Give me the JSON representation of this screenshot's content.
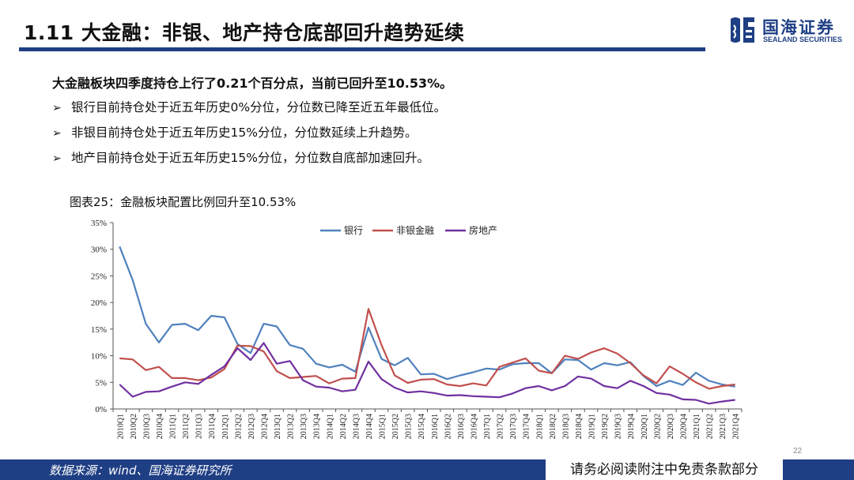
{
  "slide": {
    "title": "1.11 大金融：非银、地产持仓底部回升趋势延续",
    "page_number": "22"
  },
  "brand": {
    "name_cn": "国海证券",
    "name_en": "SEALAND SECURITIES",
    "logo_icon": "sealand-logo-icon",
    "primary_color": "#1f3f84"
  },
  "content": {
    "headline": "大金融板块四季度持仓上行了0.21个百分点，当前已回升至10.53%。",
    "bullet_marker": "➢",
    "bullets": [
      "银行目前持仓处于近五年历史0%分位，分位数已降至近五年最低位。",
      "非银目前持仓处于近五年历史15%分位，分位数延续上升趋势。",
      "地产目前持仓处于近五年历史15%分位，分位数自底部加速回升。"
    ],
    "figure_caption": "图表25：金融板块配置比例回升至10.53%"
  },
  "footer": {
    "source": "数据来源：wind、国海证券研究所",
    "disclaimer": "请务必阅读附注中免责条款部分"
  },
  "chart_data": {
    "type": "line",
    "title": "",
    "xlabel": "",
    "ylabel": "",
    "ylim": [
      0,
      35
    ],
    "yticks": [
      "0%",
      "5%",
      "10%",
      "15%",
      "20%",
      "25%",
      "30%",
      "35%"
    ],
    "grid": false,
    "legend_position": "top-center",
    "categories": [
      "2010Q1",
      "2010Q2",
      "2010Q3",
      "2010Q4",
      "2011Q1",
      "2011Q2",
      "2011Q3",
      "2011Q4",
      "2012Q1",
      "2012Q2",
      "2012Q3",
      "2012Q4",
      "2013Q1",
      "2013Q2",
      "2013Q3",
      "2013Q4",
      "2014Q1",
      "2014Q2",
      "2014Q3",
      "2014Q4",
      "2015Q1",
      "2015Q2",
      "2015Q3",
      "2015Q4",
      "2016Q1",
      "2016Q2",
      "2016Q3",
      "2016Q4",
      "2017Q1",
      "2017Q2",
      "2017Q3",
      "2017Q4",
      "2018Q1",
      "2018Q2",
      "2018Q3",
      "2018Q4",
      "2019Q1",
      "2019Q2",
      "2019Q3",
      "2019Q4",
      "2020Q1",
      "2020Q2",
      "2020Q3",
      "2020Q4",
      "2021Q1",
      "2021Q2",
      "2021Q3",
      "2021Q4"
    ],
    "series": [
      {
        "name": "银行",
        "color": "#4f81bd",
        "values": [
          30.5,
          24.2,
          16.0,
          12.5,
          15.8,
          16.0,
          14.8,
          17.5,
          17.2,
          12.2,
          10.5,
          16.0,
          15.5,
          12.0,
          11.3,
          8.5,
          7.8,
          8.3,
          7.0,
          15.3,
          9.4,
          8.2,
          9.6,
          6.5,
          6.6,
          5.6,
          6.3,
          6.9,
          7.6,
          7.4,
          8.4,
          8.6,
          8.6,
          6.7,
          9.3,
          9.2,
          7.4,
          8.6,
          8.2,
          8.8,
          6.2,
          4.3,
          5.3,
          4.5,
          6.8,
          5.3,
          4.6,
          4.2
        ]
      },
      {
        "name": "非银金融",
        "color": "#c0504d",
        "values": [
          9.5,
          9.3,
          7.3,
          7.9,
          5.8,
          5.8,
          5.4,
          5.9,
          7.5,
          11.9,
          11.8,
          10.8,
          7.1,
          5.8,
          6.0,
          6.2,
          4.8,
          5.7,
          5.8,
          18.8,
          12.0,
          6.3,
          4.9,
          5.5,
          5.6,
          4.6,
          4.3,
          4.8,
          4.4,
          7.9,
          8.7,
          9.5,
          7.2,
          6.7,
          10.0,
          9.4,
          10.6,
          11.4,
          10.4,
          8.6,
          6.3,
          4.8,
          8.0,
          6.6,
          5.0,
          3.8,
          4.3,
          4.6
        ]
      },
      {
        "name": "房地产",
        "color": "#7030a0",
        "values": [
          4.6,
          2.3,
          3.2,
          3.3,
          4.2,
          5.0,
          4.7,
          6.4,
          8.0,
          11.4,
          9.2,
          12.4,
          8.5,
          9.0,
          5.4,
          4.2,
          4.0,
          3.3,
          3.6,
          8.9,
          5.6,
          4.0,
          3.1,
          3.3,
          3.0,
          2.5,
          2.6,
          2.4,
          2.3,
          2.2,
          2.9,
          3.9,
          4.3,
          3.5,
          4.3,
          6.1,
          5.7,
          4.3,
          3.9,
          5.3,
          4.3,
          3.0,
          2.7,
          1.8,
          1.7,
          1.0,
          1.4,
          1.7
        ]
      }
    ]
  }
}
